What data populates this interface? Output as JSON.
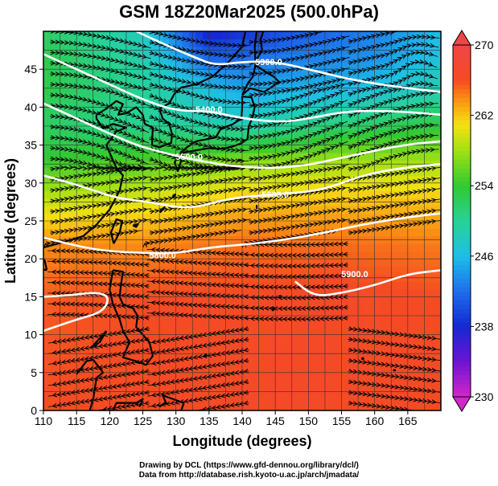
{
  "title": "GSM 18Z20Mar2025 (500.0hPa)",
  "credits": {
    "line1": "Drawing by DCL (https://www.gfd-dennou.org/library/dcl/)",
    "line2": "Data from http://database.rish.kyoto-u.ac.jp/arch/jmadata/"
  },
  "chart_data": {
    "type": "heatmap",
    "title": "GSM 18Z20Mar2025 (500.0hPa)",
    "xlabel": "Longitude (degrees)",
    "ylabel": "Latitude  (degrees)",
    "xlim": [
      110,
      170
    ],
    "ylim": [
      0,
      50
    ],
    "xticks": [
      "110",
      "115",
      "120",
      "125",
      "130",
      "135",
      "140",
      "145",
      "150",
      "155",
      "160",
      "165"
    ],
    "yticks": [
      "0",
      "5",
      "10",
      "15",
      "20",
      "25",
      "30",
      "35",
      "40",
      "45"
    ],
    "grid": true,
    "colorbar": {
      "min": 230,
      "max": 270,
      "ticks": [
        "230",
        "238",
        "246",
        "254",
        "262",
        "270"
      ]
    },
    "contour_labels": [
      "5300.0",
      "5400.0",
      "5500.0",
      "5600.0",
      "5800.0",
      "5900.0"
    ],
    "contours": [
      {
        "label": "5300.0",
        "label_at": [
          144,
          46
        ],
        "points": [
          [
            124,
            50
          ],
          [
            129,
            48
          ],
          [
            133,
            46.5
          ],
          [
            136,
            45.5
          ],
          [
            140,
            46
          ],
          [
            145,
            46
          ],
          [
            150,
            45
          ],
          [
            157,
            43.5
          ],
          [
            165,
            42.5
          ],
          [
            170,
            42
          ]
        ]
      },
      {
        "label": "5400.0",
        "label_at": [
          135,
          39.7
        ],
        "points": [
          [
            110,
            47
          ],
          [
            115,
            45
          ],
          [
            120,
            43
          ],
          [
            125,
            41
          ],
          [
            130,
            39.5
          ],
          [
            135,
            39.5
          ],
          [
            140,
            38.5
          ],
          [
            146,
            38
          ],
          [
            150,
            38.5
          ],
          [
            156,
            39.5
          ],
          [
            163,
            39.5
          ],
          [
            170,
            39
          ]
        ]
      },
      {
        "label": "5500.0",
        "label_at": [
          132,
          33.5
        ],
        "points": [
          [
            110,
            40.5
          ],
          [
            115,
            38.5
          ],
          [
            120,
            36.5
          ],
          [
            124,
            35
          ],
          [
            128,
            34
          ],
          [
            133,
            33
          ],
          [
            140,
            32
          ],
          [
            148,
            32
          ],
          [
            156,
            33.5
          ],
          [
            164,
            35
          ],
          [
            170,
            35.5
          ]
        ]
      },
      {
        "label": "5600.0",
        "label_at": [
          145,
          28.5
        ],
        "points": [
          [
            110,
            31
          ],
          [
            116,
            29.5
          ],
          [
            121,
            28
          ],
          [
            126,
            27.5
          ],
          [
            132,
            26.5
          ],
          [
            138,
            28
          ],
          [
            145,
            28.5
          ],
          [
            152,
            29
          ],
          [
            158,
            31
          ],
          [
            164,
            32
          ],
          [
            170,
            32.5
          ]
        ]
      },
      {
        "label": "5800.0",
        "label_at": [
          128,
          20.5
        ],
        "points": [
          [
            110,
            22.8
          ],
          [
            116,
            21.5
          ],
          [
            120,
            21
          ],
          [
            124,
            20.8
          ],
          [
            130,
            20.7
          ],
          [
            135,
            21.5
          ],
          [
            142,
            22
          ],
          [
            150,
            23
          ],
          [
            158,
            24.5
          ],
          [
            165,
            25.5
          ],
          [
            170,
            26
          ]
        ]
      },
      {
        "label": "5900.0",
        "label_at": [
          157,
          18
        ],
        "points": [
          [
            110,
            15
          ],
          [
            114,
            15.2
          ],
          [
            118,
            15.6
          ],
          [
            120,
            15
          ],
          [
            119,
            13
          ],
          [
            115,
            12
          ],
          [
            110,
            10.5
          ]
        ]
      },
      {
        "label": "",
        "label_at": null,
        "points": [
          [
            148,
            17
          ],
          [
            151,
            15
          ],
          [
            155,
            15.5
          ],
          [
            160,
            16.5
          ],
          [
            165,
            18
          ],
          [
            170,
            18.5
          ]
        ]
      }
    ],
    "fill_knots": [
      {
        "lat": 0,
        "samples": [
          [
            110,
            266
          ],
          [
            125,
            266
          ],
          [
            140,
            266.5
          ],
          [
            155,
            266.5
          ],
          [
            170,
            266
          ]
        ]
      },
      {
        "lat": 15,
        "samples": [
          [
            110,
            265.5
          ],
          [
            125,
            266
          ],
          [
            140,
            266.2
          ],
          [
            155,
            266.5
          ],
          [
            170,
            266
          ]
        ]
      },
      {
        "lat": 22,
        "samples": [
          [
            110,
            264
          ],
          [
            125,
            264
          ],
          [
            140,
            265
          ],
          [
            155,
            265
          ],
          [
            170,
            264.5
          ]
        ]
      },
      {
        "lat": 28,
        "samples": [
          [
            110,
            259
          ],
          [
            125,
            260
          ],
          [
            140,
            262
          ],
          [
            155,
            262
          ],
          [
            170,
            262
          ]
        ]
      },
      {
        "lat": 33,
        "samples": [
          [
            110,
            254
          ],
          [
            125,
            255
          ],
          [
            140,
            257
          ],
          [
            155,
            258
          ],
          [
            170,
            258
          ]
        ]
      },
      {
        "lat": 38,
        "samples": [
          [
            110,
            252
          ],
          [
            125,
            250
          ],
          [
            140,
            248
          ],
          [
            155,
            251
          ],
          [
            170,
            253
          ]
        ]
      },
      {
        "lat": 42,
        "samples": [
          [
            110,
            253
          ],
          [
            125,
            250
          ],
          [
            140,
            245
          ],
          [
            155,
            246
          ],
          [
            170,
            249
          ]
        ]
      },
      {
        "lat": 46,
        "samples": [
          [
            110,
            253
          ],
          [
            125,
            249
          ],
          [
            135,
            242
          ],
          [
            145,
            243
          ],
          [
            160,
            244
          ],
          [
            170,
            247
          ]
        ]
      },
      {
        "lat": 50,
        "samples": [
          [
            110,
            252
          ],
          [
            125,
            248
          ],
          [
            135,
            237
          ],
          [
            145,
            240
          ],
          [
            160,
            243
          ],
          [
            170,
            246
          ]
        ]
      }
    ]
  }
}
